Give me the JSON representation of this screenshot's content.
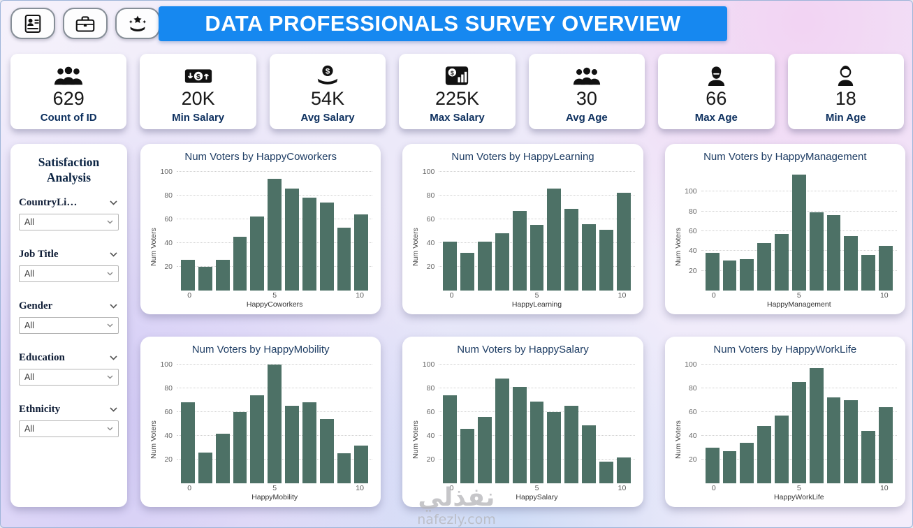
{
  "header": {
    "title": "DATA PROFESSIONALS SURVEY OVERVIEW",
    "nav_icons": [
      "resume-icon",
      "briefcase-icon",
      "rating-hand-icon"
    ]
  },
  "kpis": [
    {
      "icon": "people-group-icon",
      "value": "629",
      "label": "Count of ID"
    },
    {
      "icon": "money-transfer-icon",
      "value": "20K",
      "label": "Min Salary"
    },
    {
      "icon": "hand-coin-icon",
      "value": "54K",
      "label": "Avg Salary"
    },
    {
      "icon": "money-chart-icon",
      "value": "225K",
      "label": "Max Salary"
    },
    {
      "icon": "people-group-icon",
      "value": "30",
      "label": "Avg Age"
    },
    {
      "icon": "elder-person-icon",
      "value": "66",
      "label": "Max Age"
    },
    {
      "icon": "young-person-icon",
      "value": "18",
      "label": "Min Age"
    }
  ],
  "sidebar": {
    "title": "Satisfaction Analysis",
    "filters": [
      {
        "label": "CountryLi…",
        "value": "All"
      },
      {
        "label": "Job Title",
        "value": "All"
      },
      {
        "label": "Gender",
        "value": "All"
      },
      {
        "label": "Education",
        "value": "All"
      },
      {
        "label": "Ethnicity",
        "value": "All"
      }
    ]
  },
  "watermark": {
    "arabic": "نفذلي",
    "site": "nafezly.com"
  },
  "colors": {
    "header_blue": "#1688f0",
    "bar_color": "#4d7166",
    "title_navy": "#1e3d64",
    "kpi_label_navy": "#0c2f5e"
  },
  "chart_data": [
    {
      "type": "bar",
      "title": "Num Voters by HappyCoworkers",
      "xlabel": "HappyCoworkers",
      "ylabel": "Num Voters",
      "x": [
        0,
        1,
        2,
        3,
        4,
        5,
        6,
        7,
        8,
        9,
        10
      ],
      "values": [
        26,
        20,
        26,
        45,
        62,
        94,
        86,
        78,
        74,
        53,
        64
      ],
      "yticks": [
        20,
        40,
        60,
        80,
        100
      ],
      "xticks": [
        0,
        5,
        10
      ],
      "ylim": [
        0,
        100
      ],
      "grid": true
    },
    {
      "type": "bar",
      "title": "Num Voters by HappyLearning",
      "xlabel": "HappyLearning",
      "ylabel": "Num Voters",
      "x": [
        0,
        1,
        2,
        3,
        4,
        5,
        6,
        7,
        8,
        9,
        10
      ],
      "values": [
        41,
        32,
        41,
        48,
        67,
        55,
        86,
        69,
        56,
        51,
        82
      ],
      "yticks": [
        20,
        40,
        60,
        80,
        100
      ],
      "xticks": [
        0,
        5,
        10
      ],
      "ylim": [
        0,
        100
      ],
      "grid": true
    },
    {
      "type": "bar",
      "title": "Num Voters by HappyManagement",
      "xlabel": "HappyManagement",
      "ylabel": "Num Voters",
      "x": [
        0,
        1,
        2,
        3,
        4,
        5,
        6,
        7,
        8,
        9,
        10
      ],
      "values": [
        38,
        30,
        32,
        48,
        57,
        117,
        79,
        76,
        55,
        36,
        45
      ],
      "yticks": [
        20,
        40,
        60,
        80,
        100
      ],
      "xticks": [
        0,
        5,
        10
      ],
      "ylim": [
        0,
        120
      ],
      "grid": true
    },
    {
      "type": "bar",
      "title": "Num Voters by HappyMobility",
      "xlabel": "HappyMobility",
      "ylabel": "Num Voters",
      "x": [
        0,
        1,
        2,
        3,
        4,
        5,
        6,
        7,
        8,
        9,
        10
      ],
      "values": [
        68,
        26,
        42,
        60,
        74,
        100,
        65,
        68,
        54,
        25,
        32
      ],
      "yticks": [
        20,
        40,
        60,
        80,
        100
      ],
      "xticks": [
        0,
        5,
        10
      ],
      "ylim": [
        0,
        100
      ],
      "grid": true
    },
    {
      "type": "bar",
      "title": "Num Voters by HappySalary",
      "xlabel": "HappySalary",
      "ylabel": "Num Voters",
      "x": [
        0,
        1,
        2,
        3,
        4,
        5,
        6,
        7,
        8,
        9,
        10
      ],
      "values": [
        74,
        46,
        56,
        88,
        81,
        69,
        60,
        65,
        49,
        18,
        22
      ],
      "yticks": [
        20,
        40,
        60,
        80,
        100
      ],
      "xticks": [
        0,
        5,
        10
      ],
      "ylim": [
        0,
        100
      ],
      "grid": true
    },
    {
      "type": "bar",
      "title": "Num Voters by HappyWorkLife",
      "xlabel": "HappyWorkLife",
      "ylabel": "Num Voters",
      "x": [
        0,
        1,
        2,
        3,
        4,
        5,
        6,
        7,
        8,
        9,
        10
      ],
      "values": [
        30,
        27,
        34,
        48,
        57,
        85,
        97,
        72,
        70,
        44,
        64
      ],
      "yticks": [
        20,
        40,
        60,
        80,
        100
      ],
      "xticks": [
        0,
        5,
        10
      ],
      "ylim": [
        0,
        100
      ],
      "grid": true
    }
  ]
}
